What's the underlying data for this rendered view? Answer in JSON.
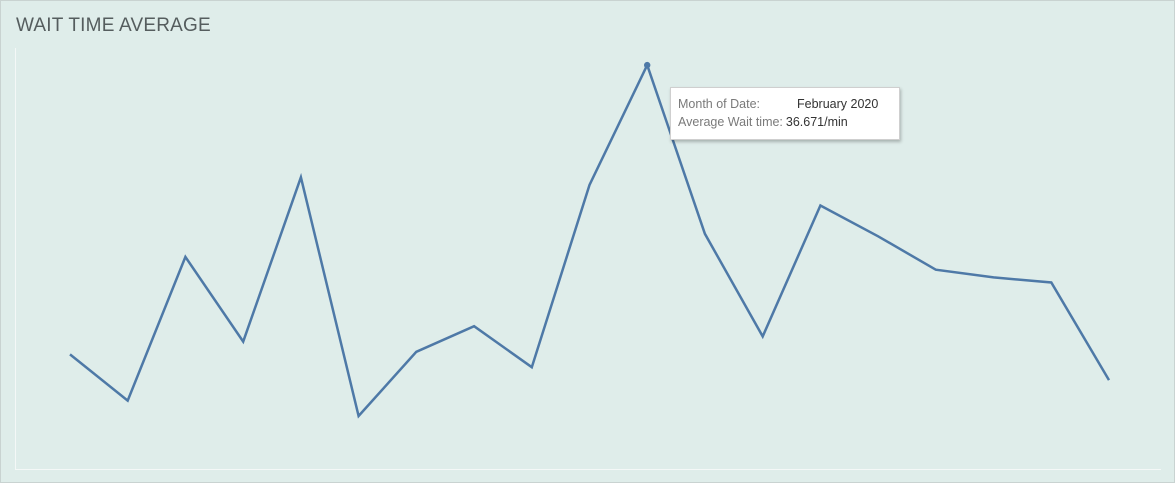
{
  "chart_data": {
    "type": "line",
    "title": "WAIT TIME AVERAGE",
    "xlabel": "",
    "ylabel": "",
    "x": [
      1,
      2,
      3,
      4,
      5,
      6,
      7,
      8,
      9,
      10,
      11,
      12,
      13,
      14,
      15,
      16,
      17,
      18,
      19
    ],
    "series": [
      {
        "color": "#4e79a7",
        "values": [
          25.4,
          23.6,
          29.2,
          25.9,
          32.3,
          23.0,
          25.5,
          26.5,
          24.9,
          32.0,
          36.671,
          30.1,
          26.1,
          31.2,
          30.0,
          28.7,
          28.4,
          28.2,
          24.4
        ]
      }
    ],
    "ylim": [
      20,
      38
    ],
    "grid": false,
    "highlight_index": 10
  },
  "tooltip": {
    "month_label": "Month of Date:",
    "month_value": "February 2020",
    "wait_label": "Average Wait time:",
    "wait_value": "36.671/min"
  }
}
